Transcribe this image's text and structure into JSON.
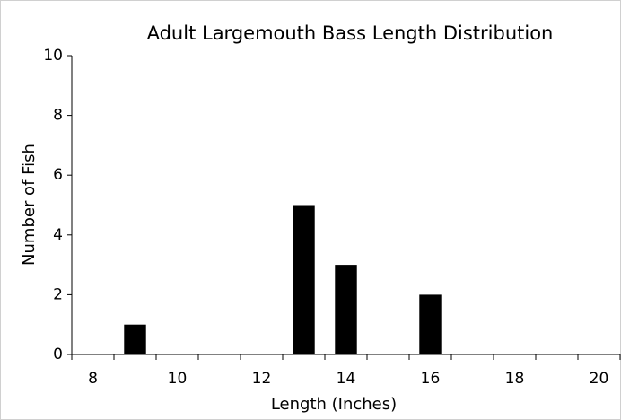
{
  "chart_data": {
    "type": "bar",
    "title": "Adult Largemouth Bass Length Distribution",
    "x_label": "Length (Inches)",
    "y_label": "Number of Fish",
    "categories": [
      "8",
      null,
      "10",
      null,
      "12",
      null,
      "14",
      null,
      "16",
      null,
      "18",
      null,
      "20"
    ],
    "values": [
      0,
      1,
      0,
      0,
      0,
      5,
      3,
      0,
      2,
      0,
      0,
      0,
      0
    ],
    "color": "#000000",
    "ylim": [
      0,
      10
    ],
    "yticks": [
      0,
      2,
      4,
      6,
      8,
      10
    ],
    "grid": false
  }
}
